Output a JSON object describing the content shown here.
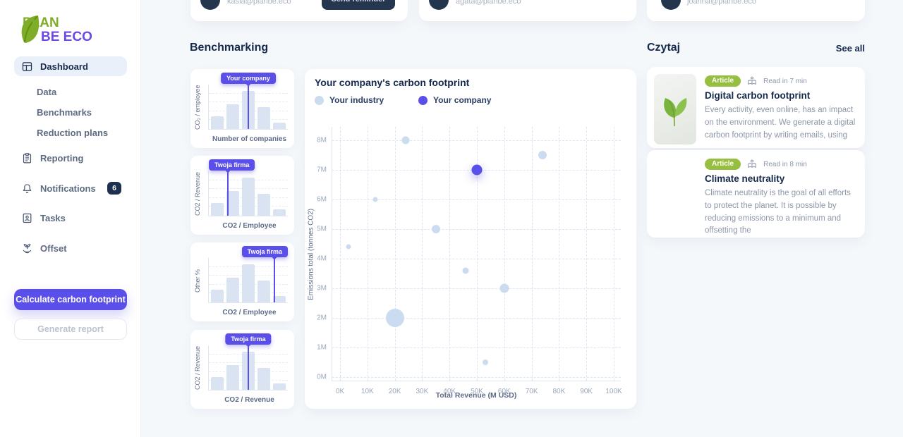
{
  "brand": {
    "name": "PLAN BE ECO",
    "line1": "PLAN",
    "line2": "BE ECO"
  },
  "sidebar": {
    "items": [
      {
        "label": "Dashboard"
      },
      {
        "label": "Data"
      },
      {
        "label": "Benchmarks"
      },
      {
        "label": "Reduction plans"
      },
      {
        "label": "Reporting"
      },
      {
        "label": "Notifications",
        "badge": "6"
      },
      {
        "label": "Tasks"
      },
      {
        "label": "Offset"
      }
    ],
    "primary_button": "Calculate carbon footprint",
    "secondary_button": "Generate report"
  },
  "top_cards": [
    {
      "email": "kasia@planbe.eco",
      "button": "Send reminder"
    },
    {
      "email": "agata@planbe.eco"
    },
    {
      "email": "joanna@planbe.eco"
    }
  ],
  "benchmarking": {
    "title": "Benchmarking"
  },
  "read_section": {
    "title": "Czytaj",
    "see_all": "See all",
    "articles": [
      {
        "badge": "Article",
        "read_time": "Read in 7 min",
        "title": "Digital carbon footprint",
        "excerpt": "Every activity, even online, has an impact on the environment. We generate a digital carbon footprint by writing emails, using",
        "image": "leaf-photo"
      },
      {
        "badge": "Article",
        "read_time": "Read in 8 min",
        "title": "Climate neutrality",
        "excerpt": "Climate neutrality is the goal of all efforts to protect the planet. It is possible by reducing emissions to a minimum and offsetting the",
        "image": "solar-farm-photo"
      }
    ]
  },
  "chart_data": [
    {
      "type": "scatter",
      "title": "Your company's carbon footprint",
      "xlabel": "Total Revenue (M USD)",
      "ylabel": "Emissions total (tonnes CO2)",
      "x_ticks": [
        "0K",
        "10K",
        "20K",
        "30K",
        "40K",
        "50K",
        "60K",
        "70K",
        "80K",
        "90K",
        "100K"
      ],
      "y_ticks": [
        "0M",
        "1M",
        "2M",
        "3M",
        "4M",
        "5M",
        "6M",
        "7M",
        "8M"
      ],
      "xlim": [
        0,
        100000
      ],
      "ylim": [
        0,
        8000000
      ],
      "grid": "dashed",
      "legend_position": "top",
      "series": [
        {
          "name": "Your industry",
          "color": "#ccdcf0",
          "points": [
            {
              "x": 24000,
              "y": 8000000,
              "r": 5.5
            },
            {
              "x": 74000,
              "y": 7500000,
              "r": 6
            },
            {
              "x": 13000,
              "y": 6000000,
              "r": 3.5
            },
            {
              "x": 35000,
              "y": 5000000,
              "r": 6
            },
            {
              "x": 3000,
              "y": 4400000,
              "r": 3.5
            },
            {
              "x": 46000,
              "y": 3600000,
              "r": 4.5
            },
            {
              "x": 60000,
              "y": 3000000,
              "r": 6.5
            },
            {
              "x": 20000,
              "y": 2000000,
              "r": 13
            },
            {
              "x": 53000,
              "y": 500000,
              "r": 4
            }
          ]
        },
        {
          "name": "Your company",
          "color": "#5b4fe9",
          "points": [
            {
              "x": 50000,
              "y": 7000000,
              "r": 7.5
            }
          ]
        }
      ]
    },
    {
      "type": "histogram",
      "badge": "Your company",
      "badge_pos": "center",
      "marker_frac": 0.5,
      "ylabel": "CO₂ / employee",
      "xlabel": "Number of companies",
      "bars": [
        28,
        55,
        85,
        50,
        14
      ]
    },
    {
      "type": "histogram",
      "badge": "Twoja firma",
      "badge_pos": "left",
      "marker_frac": 0.24,
      "ylabel": "CO2 / Revenue",
      "xlabel": "CO2 / Employee",
      "bars": [
        28,
        55,
        85,
        50,
        14
      ]
    },
    {
      "type": "histogram",
      "badge": "Twoja firma",
      "badge_pos": "right",
      "marker_frac": 0.83,
      "ylabel": "Other %",
      "xlabel": "CO2 / Employee",
      "bars": [
        28,
        55,
        85,
        50,
        14
      ]
    },
    {
      "type": "histogram",
      "badge": "Twoja firma",
      "badge_pos": "center",
      "marker_frac": 0.5,
      "ylabel": "CO2 / Revenue",
      "xlabel": "CO2 / Revenue",
      "bars": [
        28,
        55,
        85,
        50,
        14
      ]
    }
  ],
  "colors": {
    "accent_purple": "#5b4fe9",
    "industry_dot": "#ccdcf0",
    "bar_fill": "#d9e3f2",
    "navy_button": "#24374e",
    "article_badge_green": "#97bf3f",
    "active_nav_bg": "#e9f0f9",
    "logo_green": "#7fad27",
    "logo_purple": "#6c49e2"
  }
}
